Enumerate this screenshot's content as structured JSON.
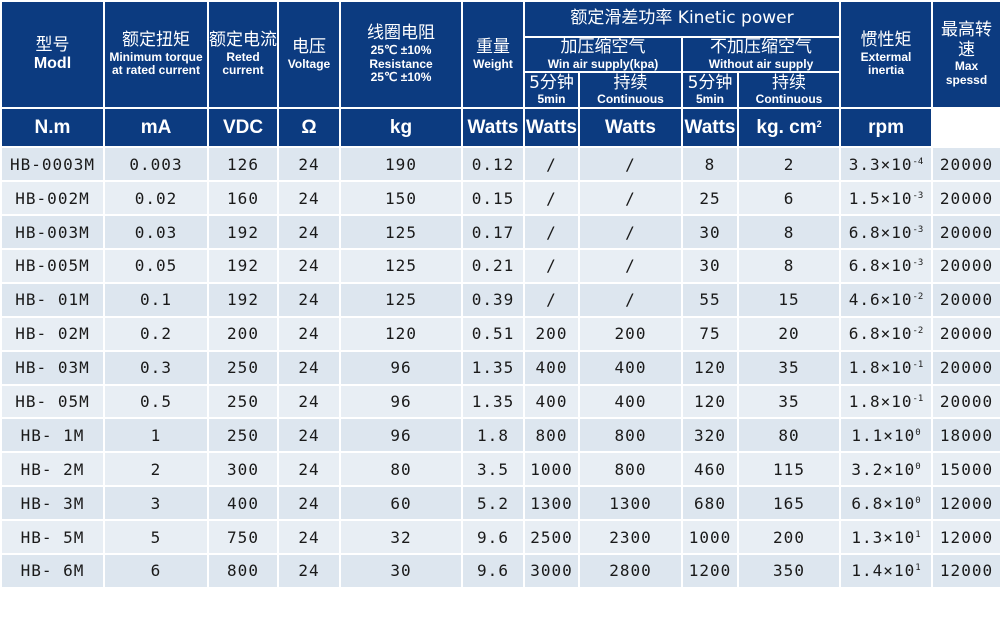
{
  "headers": {
    "model": {
      "cn": "型号",
      "en": "Modl"
    },
    "torque": {
      "cn": "额定扭矩",
      "en": "Minimum torque at rated current"
    },
    "current": {
      "cn": "额定电流",
      "en": "Reted current"
    },
    "voltage": {
      "cn": "电压",
      "en": "Voltage"
    },
    "resistance": {
      "cn": "线圈电阻",
      "en1": "25℃ ±10%",
      "en2": "Resistance",
      "en3": "25℃ ±10%"
    },
    "weight": {
      "cn": "重量",
      "en": "Weight"
    },
    "kinetic": {
      "cn": "额定滑差功率 Kinetic power"
    },
    "with_air": {
      "cn": "加压缩空气",
      "en": "Win air supply(kpa)"
    },
    "without_air": {
      "cn": "不加压缩空气",
      "en": "Without air supply"
    },
    "five_min": {
      "cn": "5分钟",
      "en": "5min"
    },
    "continuous": {
      "cn": "持续",
      "en": "Continuous"
    },
    "inertia": {
      "cn": "惯性矩",
      "en": "Extermal inertia"
    },
    "speed": {
      "cn": "最高转速",
      "en": "Max spessd"
    }
  },
  "units": {
    "torque": "N.m",
    "current": "mA",
    "voltage": "VDC",
    "resistance": "Ω",
    "weight": "kg",
    "w1": "Watts",
    "w2": "Watts",
    "w3": "Watts",
    "w4": "Watts",
    "inertia_base": "kg. cm",
    "inertia_exp": "2",
    "speed": "rpm"
  },
  "rows": [
    {
      "model": "HB-0003M",
      "torque": "0.003",
      "current": "126",
      "voltage": "24",
      "resistance": "190",
      "weight": "0.12",
      "a5": "/",
      "ac": "/",
      "n5": "8",
      "nc": "2",
      "inertia": "3.3×10",
      "exp": "-4",
      "speed": "20000"
    },
    {
      "model": "HB-002M",
      "torque": "0.02",
      "current": "160",
      "voltage": "24",
      "resistance": "150",
      "weight": "0.15",
      "a5": "/",
      "ac": "/",
      "n5": "25",
      "nc": "6",
      "inertia": "1.5×10",
      "exp": "-3",
      "speed": "20000"
    },
    {
      "model": "HB-003M",
      "torque": "0.03",
      "current": "192",
      "voltage": "24",
      "resistance": "125",
      "weight": "0.17",
      "a5": "/",
      "ac": "/",
      "n5": "30",
      "nc": "8",
      "inertia": "6.8×10",
      "exp": "-3",
      "speed": "20000"
    },
    {
      "model": "HB-005M",
      "torque": "0.05",
      "current": "192",
      "voltage": "24",
      "resistance": "125",
      "weight": "0.21",
      "a5": "/",
      "ac": "/",
      "n5": "30",
      "nc": "8",
      "inertia": "6.8×10",
      "exp": "-3",
      "speed": "20000"
    },
    {
      "model": "HB- 01M",
      "torque": "0.1",
      "current": "192",
      "voltage": "24",
      "resistance": "125",
      "weight": "0.39",
      "a5": "/",
      "ac": "/",
      "n5": "55",
      "nc": "15",
      "inertia": "4.6×10",
      "exp": "-2",
      "speed": "20000"
    },
    {
      "model": "HB- 02M",
      "torque": "0.2",
      "current": "200",
      "voltage": "24",
      "resistance": "120",
      "weight": "0.51",
      "a5": "200",
      "ac": "200",
      "n5": "75",
      "nc": "20",
      "inertia": "6.8×10",
      "exp": "-2",
      "speed": "20000"
    },
    {
      "model": "HB- 03M",
      "torque": "0.3",
      "current": "250",
      "voltage": "24",
      "resistance": "96",
      "weight": "1.35",
      "a5": "400",
      "ac": "400",
      "n5": "120",
      "nc": "35",
      "inertia": "1.8×10",
      "exp": "-1",
      "speed": "20000"
    },
    {
      "model": "HB- 05M",
      "torque": "0.5",
      "current": "250",
      "voltage": "24",
      "resistance": "96",
      "weight": "1.35",
      "a5": "400",
      "ac": "400",
      "n5": "120",
      "nc": "35",
      "inertia": "1.8×10",
      "exp": "-1",
      "speed": "20000"
    },
    {
      "model": "HB- 1M",
      "torque": "1",
      "current": "250",
      "voltage": "24",
      "resistance": "96",
      "weight": "1.8",
      "a5": "800",
      "ac": "800",
      "n5": "320",
      "nc": "80",
      "inertia": "1.1×10",
      "exp": "0",
      "speed": "18000"
    },
    {
      "model": "HB- 2M",
      "torque": "2",
      "current": "300",
      "voltage": "24",
      "resistance": "80",
      "weight": "3.5",
      "a5": "1000",
      "ac": "800",
      "n5": "460",
      "nc": "115",
      "inertia": "3.2×10",
      "exp": "0",
      "speed": "15000"
    },
    {
      "model": "HB- 3M",
      "torque": "3",
      "current": "400",
      "voltage": "24",
      "resistance": "60",
      "weight": "5.2",
      "a5": "1300",
      "ac": "1300",
      "n5": "680",
      "nc": "165",
      "inertia": "6.8×10",
      "exp": "0",
      "speed": "12000"
    },
    {
      "model": "HB- 5M",
      "torque": "5",
      "current": "750",
      "voltage": "24",
      "resistance": "32",
      "weight": "9.6",
      "a5": "2500",
      "ac": "2300",
      "n5": "1000",
      "nc": "200",
      "inertia": "1.3×10",
      "exp": "1",
      "speed": "12000"
    },
    {
      "model": "HB- 6M",
      "torque": "6",
      "current": "800",
      "voltage": "24",
      "resistance": "30",
      "weight": "9.6",
      "a5": "3000",
      "ac": "2800",
      "n5": "1200",
      "nc": "350",
      "inertia": "1.4×10",
      "exp": "1",
      "speed": "12000"
    }
  ]
}
